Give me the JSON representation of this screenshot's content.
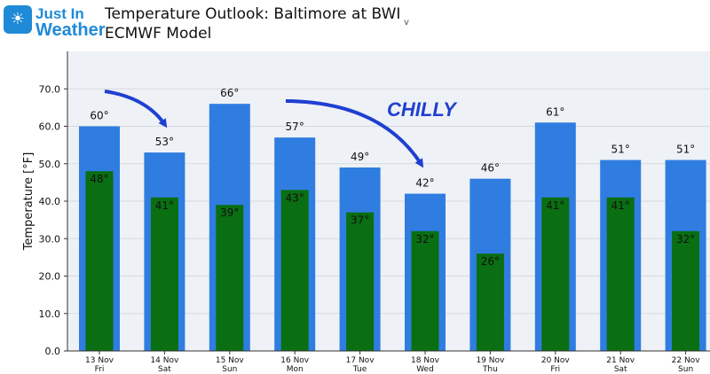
{
  "header": {
    "logo_line1": "Just In",
    "logo_line2": "Weather",
    "logo_icon": "sun-cloud-icon",
    "title_line1": "Temperature Outlook: Baltimore at BWI",
    "title_line2": "ECMWF Model",
    "chevron": "v"
  },
  "annotation": {
    "text": "CHILLY",
    "color": "#1f3fd1"
  },
  "colors": {
    "high_bar": "#2f7de1",
    "low_bar": "#0a6e12",
    "plot_bg": "#eef1f5",
    "grid": "#d5d9df",
    "arrow": "#1f3fd1"
  },
  "chart_data": {
    "type": "bar",
    "title": "Temperature Outlook: Baltimore at BWI",
    "ylabel": "Temperature [°F]",
    "xlabel": "",
    "ylim": [
      0,
      80
    ],
    "yticks": [
      "0.0",
      "10.0",
      "20.0",
      "30.0",
      "40.0",
      "50.0",
      "60.0",
      "70.0"
    ],
    "ytick_values": [
      0,
      10,
      20,
      30,
      40,
      50,
      60,
      70
    ],
    "grid": true,
    "categories": [
      {
        "date": "13 Nov",
        "day": "Fri"
      },
      {
        "date": "14 Nov",
        "day": "Sat"
      },
      {
        "date": "15 Nov",
        "day": "Sun"
      },
      {
        "date": "16 Nov",
        "day": "Mon"
      },
      {
        "date": "17 Nov",
        "day": "Tue"
      },
      {
        "date": "18 Nov",
        "day": "Wed"
      },
      {
        "date": "19 Nov",
        "day": "Thu"
      },
      {
        "date": "20 Nov",
        "day": "Fri"
      },
      {
        "date": "21 Nov",
        "day": "Sat"
      },
      {
        "date": "22 Nov",
        "day": "Sun"
      }
    ],
    "series": [
      {
        "values": [
          60,
          53,
          66,
          57,
          49,
          42,
          46,
          61,
          51,
          51
        ],
        "labels": [
          "60°",
          "53°",
          "66°",
          "57°",
          "49°",
          "42°",
          "46°",
          "61°",
          "51°",
          "51°"
        ]
      },
      {
        "values": [
          48,
          41,
          39,
          43,
          37,
          32,
          26,
          41,
          41,
          32
        ],
        "labels": [
          "48°",
          "41°",
          "39°",
          "43°",
          "37°",
          "32°",
          "26°",
          "41°",
          "41°",
          "32°"
        ]
      }
    ]
  }
}
